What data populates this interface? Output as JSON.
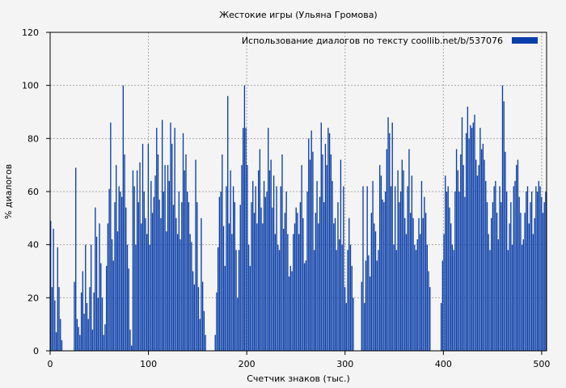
{
  "chart_data": {
    "type": "bar",
    "title": "Жестокие игры (Ульяна Громова)",
    "xlabel": "Счетчик знаков (тыс.)",
    "ylabel": "% диалогов",
    "xlim": [
      0,
      505
    ],
    "ylim": [
      0,
      120
    ],
    "x_ticks": [
      "0",
      "100",
      "200",
      "300",
      "400",
      "500"
    ],
    "y_ticks": [
      "0",
      "20",
      "40",
      "60",
      "80",
      "100",
      "120"
    ],
    "grid": true,
    "legend_position": "top-right",
    "series": [
      {
        "name": "Использование диалогов по тексту  coollib.net/b/537076",
        "color": "#0a3ea8",
        "values": [
          49,
          24,
          46,
          19,
          7,
          39,
          24,
          12,
          4,
          0,
          0,
          0,
          0,
          0,
          0,
          0,
          0,
          26,
          69,
          12,
          9,
          6,
          22,
          30,
          14,
          40,
          18,
          12,
          24,
          40,
          8,
          22,
          54,
          43,
          20,
          48,
          33,
          20,
          6,
          10,
          32,
          48,
          61,
          86,
          42,
          34,
          56,
          70,
          45,
          62,
          60,
          58,
          100,
          74,
          54,
          40,
          31,
          8,
          2,
          68,
          62,
          40,
          68,
          56,
          71,
          48,
          78,
          60,
          50,
          44,
          78,
          40,
          64,
          52,
          58,
          66,
          84,
          74,
          57,
          50,
          87,
          60,
          70,
          45,
          70,
          64,
          86,
          78,
          55,
          84,
          50,
          44,
          60,
          42,
          56,
          82,
          68,
          74,
          60,
          56,
          44,
          41,
          30,
          25,
          72,
          56,
          24,
          12,
          50,
          26,
          15,
          6,
          0,
          0,
          0,
          0,
          0,
          0,
          6,
          22,
          39,
          58,
          60,
          74,
          47,
          32,
          62,
          96,
          48,
          68,
          44,
          62,
          56,
          38,
          20,
          38,
          55,
          70,
          84,
          100,
          84,
          70,
          40,
          32,
          56,
          64,
          52,
          62,
          48,
          68,
          76,
          54,
          48,
          64,
          58,
          60,
          84,
          68,
          72,
          54,
          66,
          44,
          62,
          40,
          38,
          62,
          74,
          46,
          52,
          60,
          44,
          28,
          32,
          30,
          44,
          48,
          54,
          52,
          44,
          56,
          70,
          50,
          33,
          34,
          60,
          80,
          72,
          83,
          75,
          38,
          52,
          64,
          48,
          58,
          86,
          74,
          56,
          78,
          70,
          84,
          82,
          74,
          64,
          48,
          50,
          38,
          56,
          42,
          72,
          40,
          62,
          24,
          18,
          38,
          50,
          40,
          32,
          20,
          0,
          0,
          0,
          0,
          0,
          26,
          62,
          18,
          34,
          62,
          36,
          28,
          52,
          64,
          48,
          45,
          34,
          38,
          70,
          66,
          57,
          56,
          60,
          76,
          88,
          82,
          62,
          86,
          40,
          62,
          38,
          68,
          56,
          60,
          72,
          68,
          50,
          44,
          62,
          76,
          52,
          66,
          50,
          40,
          38,
          42,
          50,
          44,
          64,
          50,
          58,
          52,
          40,
          30,
          24,
          0,
          0,
          0,
          0,
          0,
          0,
          0,
          18,
          34,
          44,
          66,
          60,
          62,
          54,
          48,
          40,
          38,
          60,
          76,
          68,
          60,
          74,
          88,
          70,
          58,
          82,
          92,
          80,
          85,
          84,
          86,
          89,
          72,
          66,
          70,
          84,
          76,
          78,
          72,
          64,
          56,
          44,
          38,
          50,
          56,
          62,
          64,
          52,
          42,
          62,
          56,
          100,
          94,
          75,
          60,
          38,
          48,
          56,
          40,
          62,
          64,
          70,
          72,
          58,
          52,
          40,
          42,
          52,
          60,
          62,
          48,
          56,
          60,
          44,
          50,
          62,
          60,
          64,
          62,
          58,
          52,
          56,
          60
        ]
      }
    ]
  }
}
